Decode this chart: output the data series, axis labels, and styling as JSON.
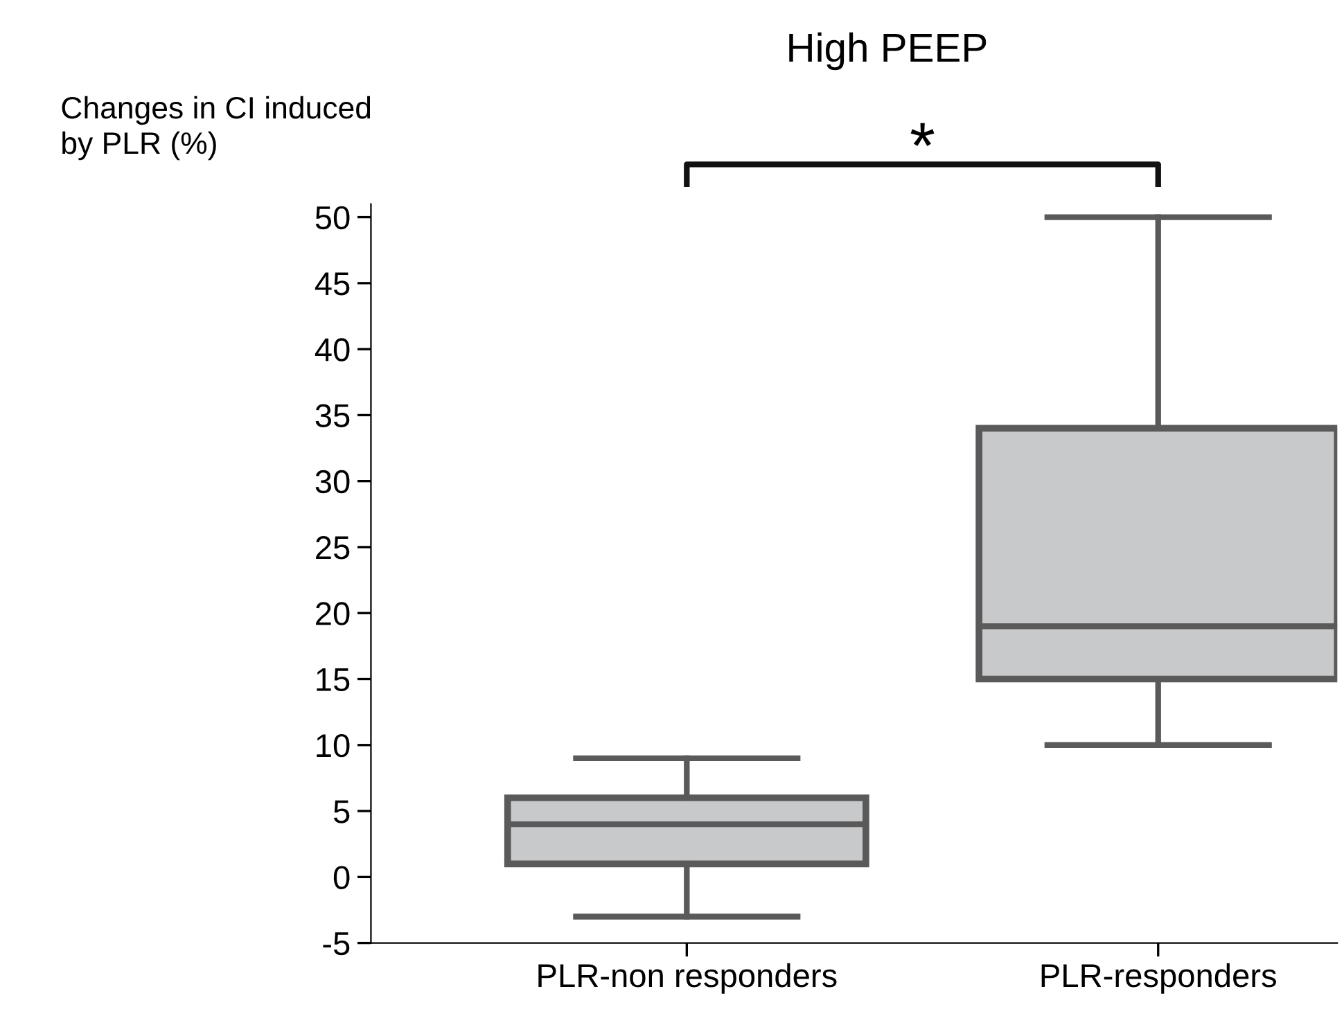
{
  "chart_data": {
    "type": "box",
    "title": "High PEEP",
    "ylabel": "Changes in CI induced\nby PLR (%)",
    "categories": [
      "PLR-non responders",
      "PLR-responders"
    ],
    "boxes": [
      {
        "low": -3,
        "q1": 1,
        "median": 4,
        "q3": 6,
        "high": 9
      },
      {
        "low": 10,
        "q1": 15,
        "median": 19,
        "q3": 34,
        "high": 50
      }
    ],
    "color": "#c8c9cb",
    "ylim": [
      -5,
      51
    ],
    "yticks": [
      -5,
      0,
      5,
      10,
      15,
      20,
      25,
      30,
      35,
      40,
      45,
      50
    ],
    "annotations": [
      "*"
    ],
    "grid": false
  }
}
